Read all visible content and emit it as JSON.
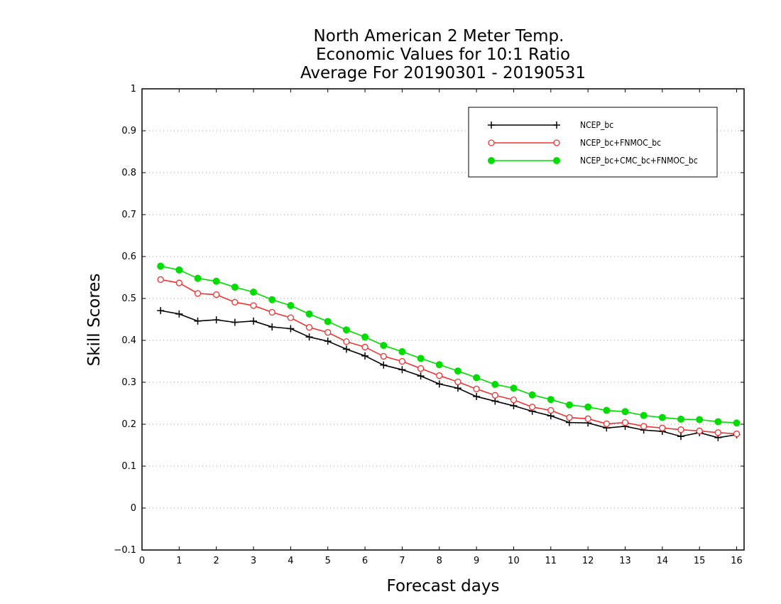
{
  "chart_data": {
    "type": "line",
    "title": [
      "North American 2 Meter Temp.",
      "Economic Values for 10:1 Ratio",
      "Average For 20190301 - 20190531"
    ],
    "xlabel": "Forecast days",
    "ylabel": "Skill Scores",
    "xlim": [
      0,
      16.2
    ],
    "ylim": [
      -0.1,
      1
    ],
    "xticks": [
      0,
      1,
      2,
      3,
      4,
      5,
      6,
      7,
      8,
      9,
      10,
      11,
      12,
      13,
      14,
      15,
      16
    ],
    "yticks": [
      -0.1,
      0,
      0.1,
      0.2,
      0.3,
      0.4,
      0.5,
      0.6,
      0.7,
      0.8,
      0.9,
      1
    ],
    "grid": true,
    "legend_position": "top-right",
    "x": [
      0.5,
      1,
      1.5,
      2,
      2.5,
      3,
      3.5,
      4,
      4.5,
      5,
      5.5,
      6,
      6.5,
      7,
      7.5,
      8,
      8.5,
      9,
      9.5,
      10,
      10.5,
      11,
      11.5,
      12,
      12.5,
      13,
      13.5,
      14,
      14.5,
      15,
      15.5,
      16
    ],
    "series": [
      {
        "name": "NCEP_bc",
        "color": "#000000",
        "marker": "plus",
        "values": [
          0.471,
          0.463,
          0.446,
          0.449,
          0.443,
          0.446,
          0.432,
          0.428,
          0.408,
          0.398,
          0.379,
          0.363,
          0.341,
          0.33,
          0.315,
          0.296,
          0.286,
          0.266,
          0.255,
          0.244,
          0.231,
          0.22,
          0.204,
          0.203,
          0.191,
          0.195,
          0.186,
          0.183,
          0.171,
          0.18,
          0.168,
          0.175
        ]
      },
      {
        "name": "NCEP_bc+FNMOC_bc",
        "color": "#ee3333",
        "marker": "open-circle",
        "values": [
          0.545,
          0.537,
          0.512,
          0.509,
          0.491,
          0.483,
          0.467,
          0.454,
          0.431,
          0.419,
          0.397,
          0.384,
          0.362,
          0.35,
          0.333,
          0.316,
          0.301,
          0.284,
          0.269,
          0.258,
          0.241,
          0.233,
          0.216,
          0.213,
          0.201,
          0.204,
          0.195,
          0.191,
          0.187,
          0.184,
          0.18,
          0.177
        ]
      },
      {
        "name": "NCEP_bc+CMC_bc+FNMOC_bc",
        "color": "#00dd00",
        "marker": "filled-circle",
        "values": [
          0.577,
          0.568,
          0.548,
          0.541,
          0.527,
          0.515,
          0.497,
          0.483,
          0.463,
          0.445,
          0.425,
          0.408,
          0.388,
          0.373,
          0.357,
          0.342,
          0.327,
          0.311,
          0.295,
          0.286,
          0.27,
          0.259,
          0.246,
          0.241,
          0.233,
          0.23,
          0.221,
          0.216,
          0.212,
          0.211,
          0.206,
          0.203
        ]
      }
    ]
  }
}
